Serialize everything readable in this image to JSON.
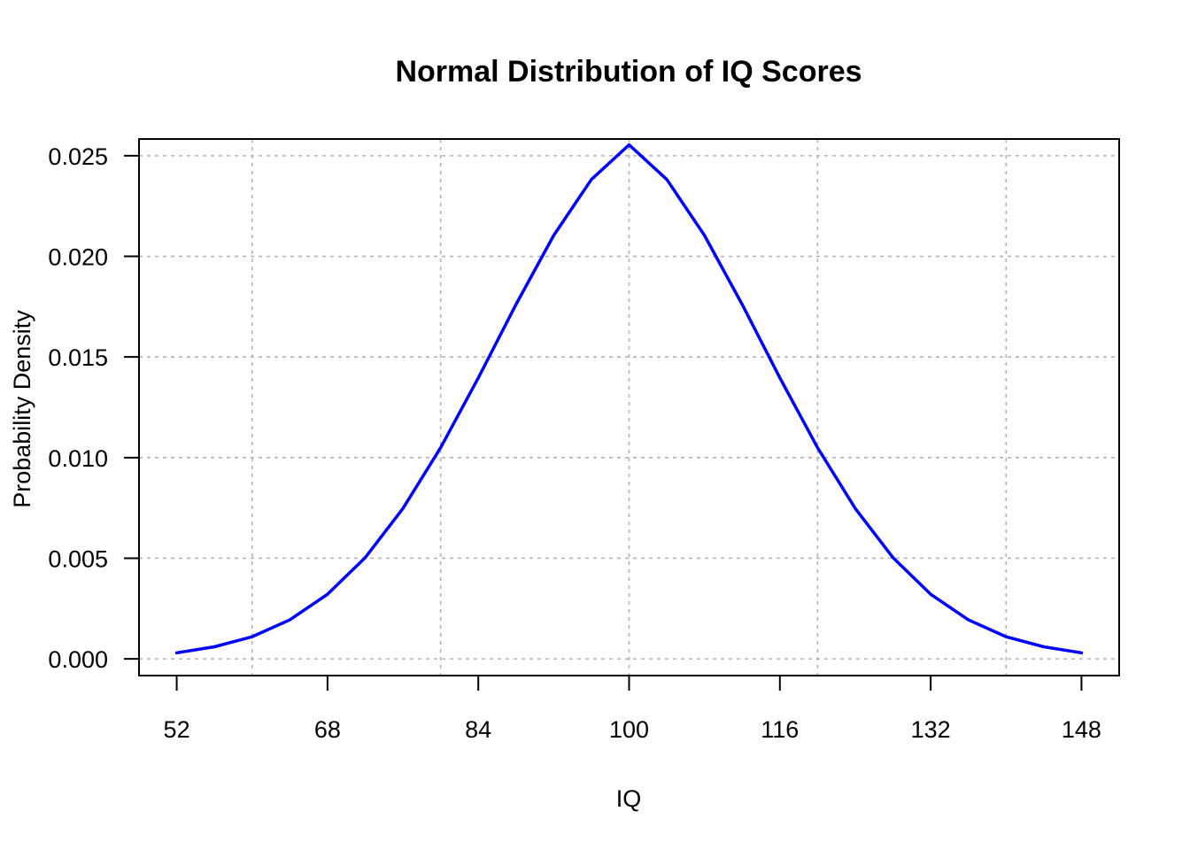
{
  "chart_data": {
    "type": "line",
    "title": "Normal Distribution of IQ Scores",
    "xlabel": "IQ",
    "ylabel": "Probability Density",
    "xlim": [
      48,
      152
    ],
    "ylim": [
      -0.00083,
      0.02583
    ],
    "x_ticks": [
      52,
      68,
      84,
      100,
      116,
      132,
      148
    ],
    "x_tick_labels": [
      "52",
      "68",
      "84",
      "100",
      "116",
      "132",
      "148"
    ],
    "y_ticks": [
      0,
      0.005,
      0.01,
      0.015,
      0.02,
      0.025
    ],
    "y_tick_labels": [
      "0.000",
      "0.005",
      "0.010",
      "0.015",
      "0.020",
      "0.025"
    ],
    "x_grid": [
      60,
      80,
      100,
      120,
      140
    ],
    "y_grid": [
      0,
      0.005,
      0.01,
      0.015,
      0.02,
      0.025
    ],
    "grid": true,
    "series": [
      {
        "color": "#0000ff",
        "x": [
          52,
          56,
          60,
          64,
          68,
          72,
          76,
          80,
          84,
          88,
          92,
          96,
          100,
          104,
          108,
          112,
          116,
          120,
          124,
          128,
          132,
          136,
          140,
          144,
          148
        ],
        "y": [
          0.0003,
          0.0006,
          0.0011,
          0.00194,
          0.00321,
          0.00503,
          0.00747,
          0.01049,
          0.01396,
          0.01761,
          0.02104,
          0.02382,
          0.02554,
          0.02382,
          0.02104,
          0.01761,
          0.01396,
          0.01049,
          0.00747,
          0.00503,
          0.00321,
          0.00194,
          0.0011,
          0.0006,
          0.0003
        ]
      }
    ]
  }
}
